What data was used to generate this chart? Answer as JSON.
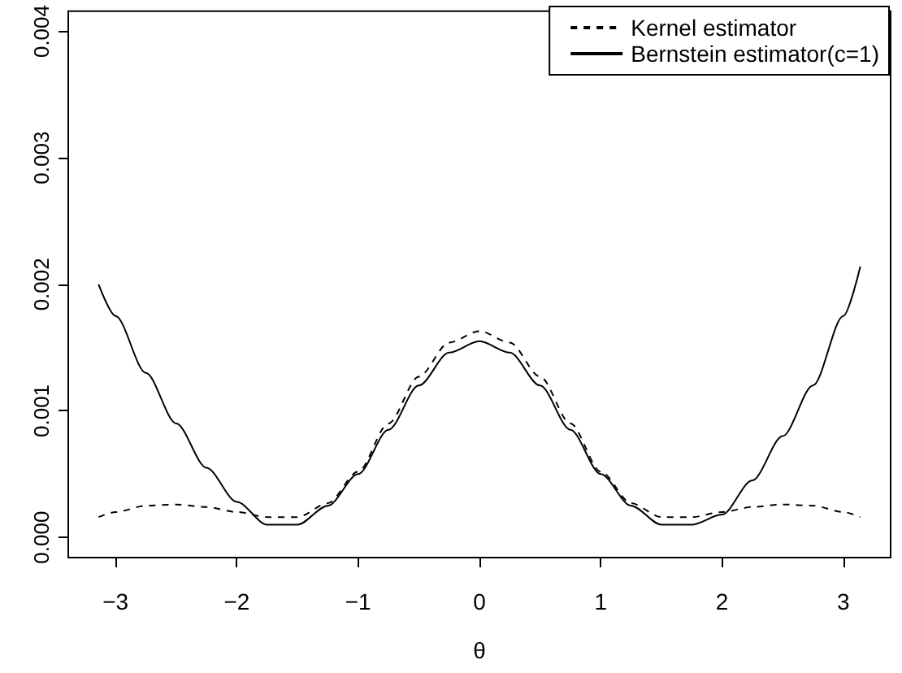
{
  "chart_data": {
    "type": "line",
    "xlabel": "θ",
    "xlim": [
      -3.39,
      3.39
    ],
    "xticks": [
      -3,
      -2,
      -1,
      0,
      1,
      2,
      3
    ],
    "ylim": [
      -0.00016,
      0.00416
    ],
    "yticks": [
      {
        "value": 0,
        "label": "0.000"
      },
      {
        "value": 0.001,
        "label": "0.001"
      },
      {
        "value": 0.002,
        "label": "0.002"
      },
      {
        "value": 0.003,
        "label": "0.003"
      },
      {
        "value": 0.004,
        "label": "0.004"
      }
    ],
    "grid": false,
    "legend": "top right",
    "marker": "none",
    "series": [
      {
        "name": "Kernel estimator",
        "color": "#000000",
        "line_style": "dashed",
        "x": [
          -3.14,
          -3.0,
          -2.75,
          -2.5,
          -2.25,
          -2.0,
          -1.75,
          -1.5,
          -1.25,
          -1.0,
          -0.75,
          -0.5,
          -0.25,
          0,
          0.25,
          0.5,
          0.75,
          1.0,
          1.25,
          1.5,
          1.75,
          2.0,
          2.25,
          2.5,
          2.75,
          3.0,
          3.14
        ],
        "values": [
          0.00016,
          0.0002,
          0.00025,
          0.00026,
          0.00024,
          0.0002,
          0.00016,
          0.00016,
          0.00027,
          0.00052,
          0.0009,
          0.00127,
          0.00154,
          0.00163,
          0.00154,
          0.00127,
          0.0009,
          0.00052,
          0.00027,
          0.00016,
          0.00016,
          0.0002,
          0.00024,
          0.00026,
          0.00025,
          0.0002,
          0.00016
        ]
      },
      {
        "name": "Bernstein estimator(c=1)",
        "color": "#000000",
        "line_style": "solid",
        "x": [
          -3.14,
          -3.0,
          -2.75,
          -2.5,
          -2.25,
          -2.0,
          -1.75,
          -1.65,
          -1.5,
          -1.25,
          -1.0,
          -0.75,
          -0.5,
          -0.25,
          0,
          0.25,
          0.5,
          0.75,
          1.0,
          1.25,
          1.5,
          1.65,
          1.75,
          2.0,
          2.25,
          2.5,
          2.75,
          3.0,
          3.14
        ],
        "values": [
          0.002,
          0.00175,
          0.0013,
          0.0009,
          0.00055,
          0.00028,
          0.0001,
          0.0001,
          0.0001,
          0.00025,
          0.0005,
          0.00085,
          0.0012,
          0.00146,
          0.00155,
          0.00146,
          0.0012,
          0.00085,
          0.0005,
          0.00025,
          0.0001,
          0.0001,
          0.0001,
          0.00018,
          0.00045,
          0.0008,
          0.0012,
          0.00175,
          0.00214
        ]
      }
    ]
  }
}
